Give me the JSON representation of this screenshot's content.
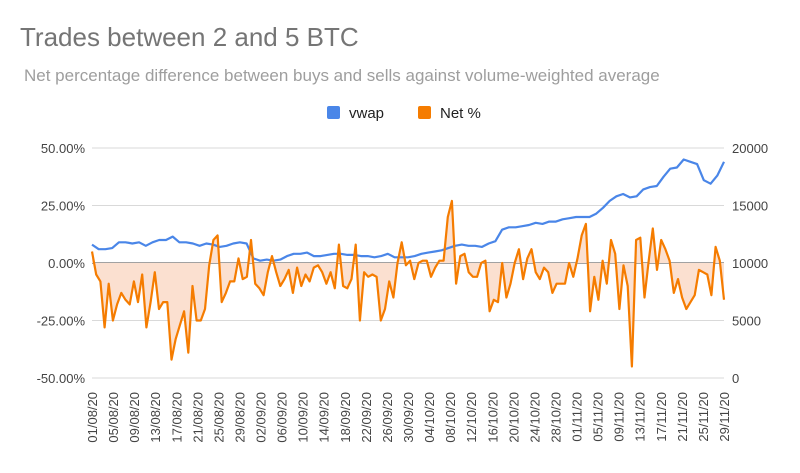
{
  "chart_data": {
    "type": "line",
    "title": "Trades between 2 and 5 BTC",
    "subtitle": "Net percentage difference between buys and sells against volume-weighted average",
    "legend_position": "top-center",
    "grid": true,
    "left_axis": {
      "ticks": [
        "50.00%",
        "25.00%",
        "0.00%",
        "-25.00%",
        "-50.00%"
      ],
      "range": [
        -50,
        50
      ]
    },
    "right_axis": {
      "ticks": [
        "20000",
        "15000",
        "10000",
        "5000",
        "0"
      ],
      "range": [
        0,
        20000
      ]
    },
    "x_tick_labels": [
      "01/08/20",
      "05/08/20",
      "09/08/20",
      "13/08/20",
      "17/08/20",
      "21/08/20",
      "25/08/20",
      "29/08/20",
      "02/09/20",
      "06/09/20",
      "10/09/20",
      "14/09/20",
      "18/09/20",
      "22/09/20",
      "26/09/20",
      "30/09/20",
      "04/10/20",
      "08/10/20",
      "12/10/20",
      "16/10/20",
      "20/10/20",
      "24/10/20",
      "28/10/20",
      "01/11/20",
      "05/11/20",
      "09/11/20",
      "13/11/20",
      "17/11/20",
      "21/11/20",
      "25/11/20",
      "29/11/20"
    ],
    "series": [
      {
        "name": "vwap",
        "axis": "right",
        "color": "#4a86e8",
        "values": [
          11600,
          11200,
          11200,
          11300,
          11800,
          11800,
          11700,
          11800,
          11500,
          11800,
          12000,
          12000,
          12300,
          11800,
          11800,
          11700,
          11500,
          11700,
          11600,
          11400,
          11500,
          11700,
          11800,
          11700,
          10400,
          10200,
          10300,
          10200,
          10300,
          10600,
          10800,
          10800,
          10900,
          10600,
          10600,
          10700,
          10800,
          10800,
          10700,
          10700,
          10600,
          10600,
          10500,
          10600,
          10800,
          10500,
          10500,
          10500,
          10600,
          10800,
          10900,
          11000,
          11100,
          11300,
          11500,
          11600,
          11500,
          11500,
          11400,
          11700,
          11900,
          12900,
          13100,
          13100,
          13200,
          13300,
          13500,
          13400,
          13600,
          13600,
          13800,
          13900,
          14000,
          14000,
          14000,
          14300,
          14800,
          15400,
          15800,
          16000,
          15700,
          15800,
          16400,
          16600,
          16700,
          17500,
          18200,
          18300,
          19000,
          18800,
          18600,
          17200,
          16900,
          17600,
          18800
        ]
      },
      {
        "name": "Net %",
        "axis": "left",
        "color": "#f57c00",
        "fill": "#fbe0d0",
        "values": [
          5,
          -5,
          -8,
          -28,
          -9,
          -25,
          -18,
          -13,
          -16,
          -18,
          -8,
          -17,
          -5,
          -28,
          -17,
          -4,
          -20,
          -17,
          -17,
          -42,
          -33,
          -27,
          -21,
          -39,
          -10,
          -25,
          -25,
          -20,
          -1,
          10,
          12,
          -17,
          -13,
          -8,
          -8,
          2,
          -7,
          -6,
          10,
          -9,
          -11,
          -14,
          -4,
          3,
          -4,
          -10,
          -7,
          -3,
          -13,
          -2,
          -10,
          -5,
          -8,
          -2,
          -1,
          -4,
          -9,
          -4,
          -11,
          8,
          -10,
          -11,
          -7,
          8,
          -25,
          -4,
          -6,
          -5,
          -6,
          -25,
          -20,
          -8,
          -15,
          0,
          9,
          -1,
          1,
          -7,
          0,
          1,
          1,
          -6,
          -2,
          1,
          1,
          20,
          27,
          -9,
          3,
          4,
          -4,
          -6,
          -6,
          0,
          1,
          -21,
          -16,
          -17,
          0,
          -15,
          -9,
          0,
          6,
          -7,
          2,
          6,
          -4,
          -7,
          -2,
          -4,
          -13,
          -9,
          -9,
          -9,
          0,
          -6,
          2,
          12,
          17,
          -21,
          -6,
          -16,
          1,
          -9,
          10,
          4,
          -20,
          -1,
          -10,
          -45,
          10,
          11,
          -15,
          1,
          15,
          -3,
          10,
          6,
          1,
          -13,
          -7,
          -15,
          -20,
          -17,
          -14,
          -3,
          -4,
          -5,
          -14,
          7,
          1,
          -16
        ]
      }
    ]
  }
}
